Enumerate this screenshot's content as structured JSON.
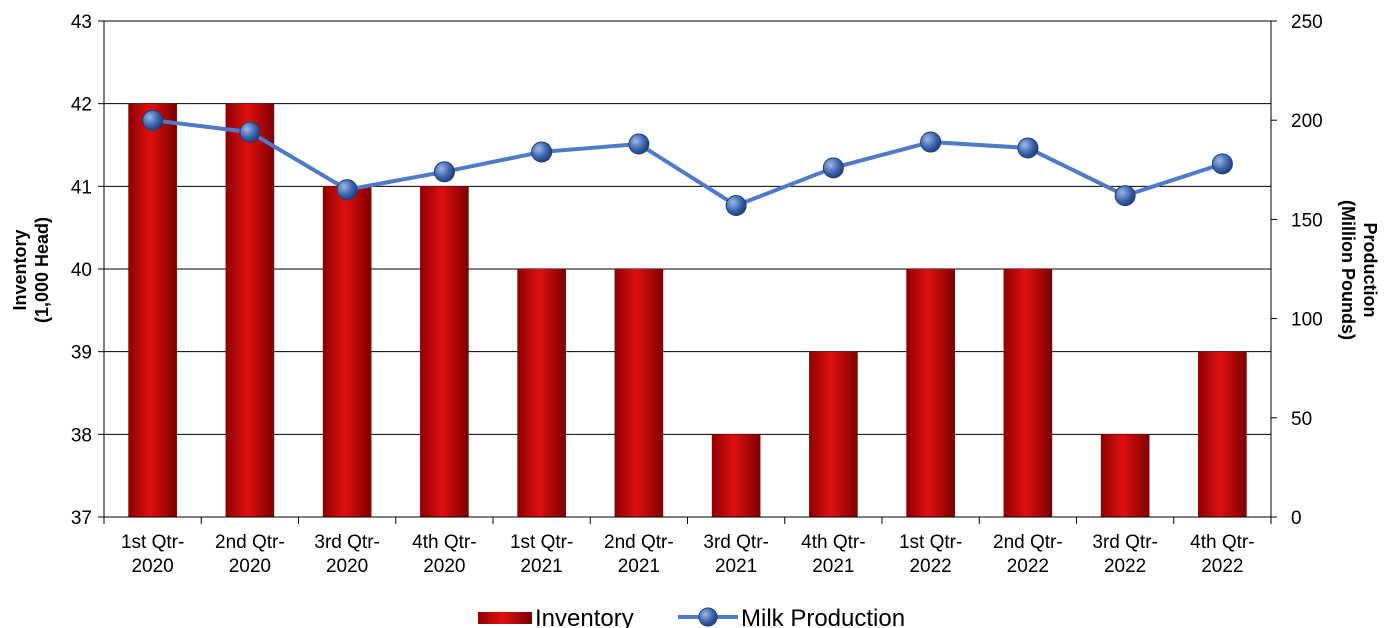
{
  "chart_data": {
    "type": "bar",
    "title": "",
    "categories": [
      [
        "1st Qtr-",
        "2020"
      ],
      [
        "2nd Qtr-",
        "2020"
      ],
      [
        "3rd Qtr-",
        "2020"
      ],
      [
        "4th Qtr-",
        "2020"
      ],
      [
        "1st Qtr-",
        "2021"
      ],
      [
        "2nd Qtr-",
        "2021"
      ],
      [
        "3rd Qtr-",
        "2021"
      ],
      [
        "4th Qtr-",
        "2021"
      ],
      [
        "1st Qtr-",
        "2022"
      ],
      [
        "2nd Qtr-",
        "2022"
      ],
      [
        "3rd Qtr-",
        "2022"
      ],
      [
        "4th Qtr-",
        "2022"
      ]
    ],
    "y_left": {
      "label_lines": [
        "Inventory",
        "(1,000 Head)"
      ],
      "range": [
        37,
        43
      ],
      "ticks": [
        "37",
        "38",
        "39",
        "40",
        "41",
        "42",
        "43"
      ]
    },
    "y_right": {
      "label_lines": [
        "Production",
        "(Million Pounds)"
      ],
      "range": [
        0,
        250
      ],
      "ticks": [
        "0",
        "50",
        "100",
        "150",
        "200",
        "250"
      ]
    },
    "grid": true,
    "legend_position": "bottom-center",
    "series": [
      {
        "name": "Inventory",
        "type": "bar",
        "axis": "left",
        "color": "#c00000",
        "values": [
          42,
          42,
          41,
          41,
          40,
          40,
          38,
          39,
          40,
          40,
          38,
          39
        ]
      },
      {
        "name": "Milk Production",
        "type": "line",
        "axis": "right",
        "color": "#4f7ac7",
        "marker_color": "#2f5597",
        "values": [
          200,
          194,
          165,
          174,
          184,
          188,
          157,
          176,
          189,
          186,
          162,
          178
        ]
      }
    ]
  }
}
